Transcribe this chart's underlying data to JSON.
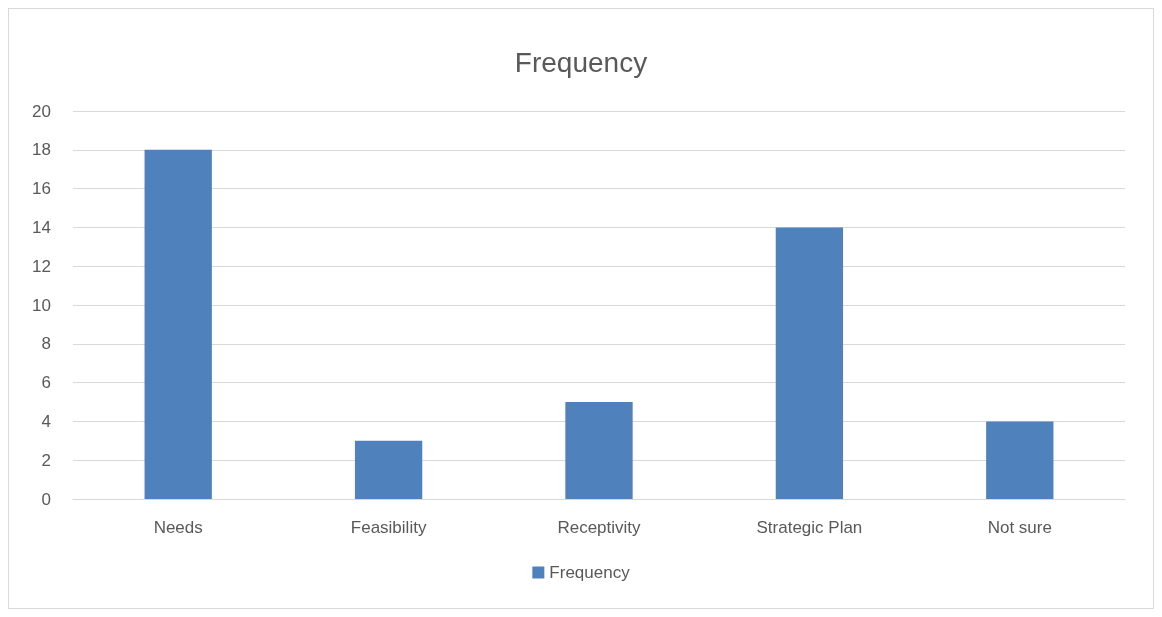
{
  "chart_data": {
    "type": "bar",
    "title": "Frequency",
    "categories": [
      "Needs",
      "Feasibility",
      "Receptivity",
      "Strategic Plan",
      "Not sure"
    ],
    "series": [
      {
        "name": "Frequency",
        "color": "#4f81bd",
        "values": [
          18,
          3,
          5,
          14,
          4
        ]
      }
    ],
    "ylim": [
      0,
      20
    ],
    "yticks": [
      0,
      2,
      4,
      6,
      8,
      10,
      12,
      14,
      16,
      18,
      20
    ],
    "grid": "y",
    "legend": "bottom"
  }
}
